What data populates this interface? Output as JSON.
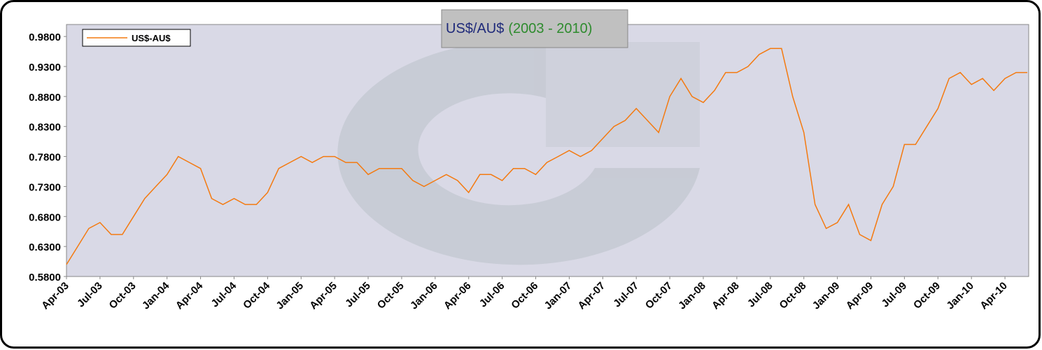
{
  "chart_data": {
    "type": "line",
    "title": "US$/AU$",
    "subtitle": "(2003 - 2010)",
    "x": [
      "Apr-03",
      "May-03",
      "Jun-03",
      "Jul-03",
      "Aug-03",
      "Sep-03",
      "Oct-03",
      "Nov-03",
      "Dec-03",
      "Jan-04",
      "Feb-04",
      "Mar-04",
      "Apr-04",
      "May-04",
      "Jun-04",
      "Jul-04",
      "Aug-04",
      "Sep-04",
      "Oct-04",
      "Nov-04",
      "Dec-04",
      "Jan-05",
      "Feb-05",
      "Mar-05",
      "Apr-05",
      "May-05",
      "Jun-05",
      "Jul-05",
      "Aug-05",
      "Sep-05",
      "Oct-05",
      "Nov-05",
      "Dec-05",
      "Jan-06",
      "Feb-06",
      "Mar-06",
      "Apr-06",
      "May-06",
      "Jun-06",
      "Jul-06",
      "Aug-06",
      "Sep-06",
      "Oct-06",
      "Nov-06",
      "Dec-06",
      "Jan-07",
      "Feb-07",
      "Mar-07",
      "Apr-07",
      "May-07",
      "Jun-07",
      "Jul-07",
      "Aug-07",
      "Sep-07",
      "Oct-07",
      "Nov-07",
      "Dec-07",
      "Jan-08",
      "Feb-08",
      "Mar-08",
      "Apr-08",
      "May-08",
      "Jun-08",
      "Jul-08",
      "Aug-08",
      "Sep-08",
      "Oct-08",
      "Nov-08",
      "Dec-08",
      "Jan-09",
      "Feb-09",
      "Mar-09",
      "Apr-09",
      "May-09",
      "Jun-09",
      "Jul-09",
      "Aug-09",
      "Sep-09",
      "Oct-09",
      "Nov-09",
      "Dec-09",
      "Jan-10",
      "Feb-10",
      "Mar-10",
      "Apr-10",
      "May-10",
      "Jun-10"
    ],
    "series": [
      {
        "name": "US$-AU$",
        "color": "#f47a10",
        "values": [
          0.6,
          0.63,
          0.66,
          0.67,
          0.65,
          0.65,
          0.68,
          0.71,
          0.73,
          0.75,
          0.78,
          0.77,
          0.76,
          0.71,
          0.7,
          0.71,
          0.7,
          0.7,
          0.72,
          0.76,
          0.77,
          0.78,
          0.77,
          0.78,
          0.78,
          0.77,
          0.77,
          0.75,
          0.76,
          0.76,
          0.76,
          0.74,
          0.73,
          0.74,
          0.75,
          0.74,
          0.72,
          0.75,
          0.75,
          0.74,
          0.76,
          0.76,
          0.75,
          0.77,
          0.78,
          0.79,
          0.78,
          0.79,
          0.81,
          0.83,
          0.84,
          0.86,
          0.84,
          0.82,
          0.88,
          0.91,
          0.88,
          0.87,
          0.89,
          0.92,
          0.92,
          0.93,
          0.95,
          0.96,
          0.96,
          0.88,
          0.82,
          0.7,
          0.66,
          0.67,
          0.7,
          0.65,
          0.64,
          0.7,
          0.73,
          0.8,
          0.8,
          0.83,
          0.86,
          0.91,
          0.92,
          0.9,
          0.91,
          0.89,
          0.91,
          0.92,
          0.92
        ]
      }
    ],
    "xticks": [
      "Apr-03",
      "Jul-03",
      "Oct-03",
      "Jan-04",
      "Apr-04",
      "Jul-04",
      "Oct-04",
      "Jan-05",
      "Apr-05",
      "Jul-05",
      "Oct-05",
      "Jan-06",
      "Apr-06",
      "Jul-06",
      "Oct-06",
      "Jan-07",
      "Apr-07",
      "Jul-07",
      "Oct-07",
      "Jan-08",
      "Apr-08",
      "Jul-08",
      "Oct-08",
      "Jan-09",
      "Apr-09",
      "Jul-09",
      "Oct-09",
      "Jan-10",
      "Apr-10"
    ],
    "ylim": [
      0.58,
      1.0
    ],
    "yticks": [
      {
        "value": 0.58,
        "label": "0.5800"
      },
      {
        "value": 0.63,
        "label": "0.6300"
      },
      {
        "value": 0.68,
        "label": "0.6800"
      },
      {
        "value": 0.73,
        "label": "0.7300"
      },
      {
        "value": 0.78,
        "label": "0.7800"
      },
      {
        "value": 0.83,
        "label": "0.8300"
      },
      {
        "value": 0.88,
        "label": "0.8800"
      },
      {
        "value": 0.93,
        "label": "0.9300"
      },
      {
        "value": 0.98,
        "label": "0.9800"
      }
    ],
    "legend": "top-left",
    "grid": false
  }
}
